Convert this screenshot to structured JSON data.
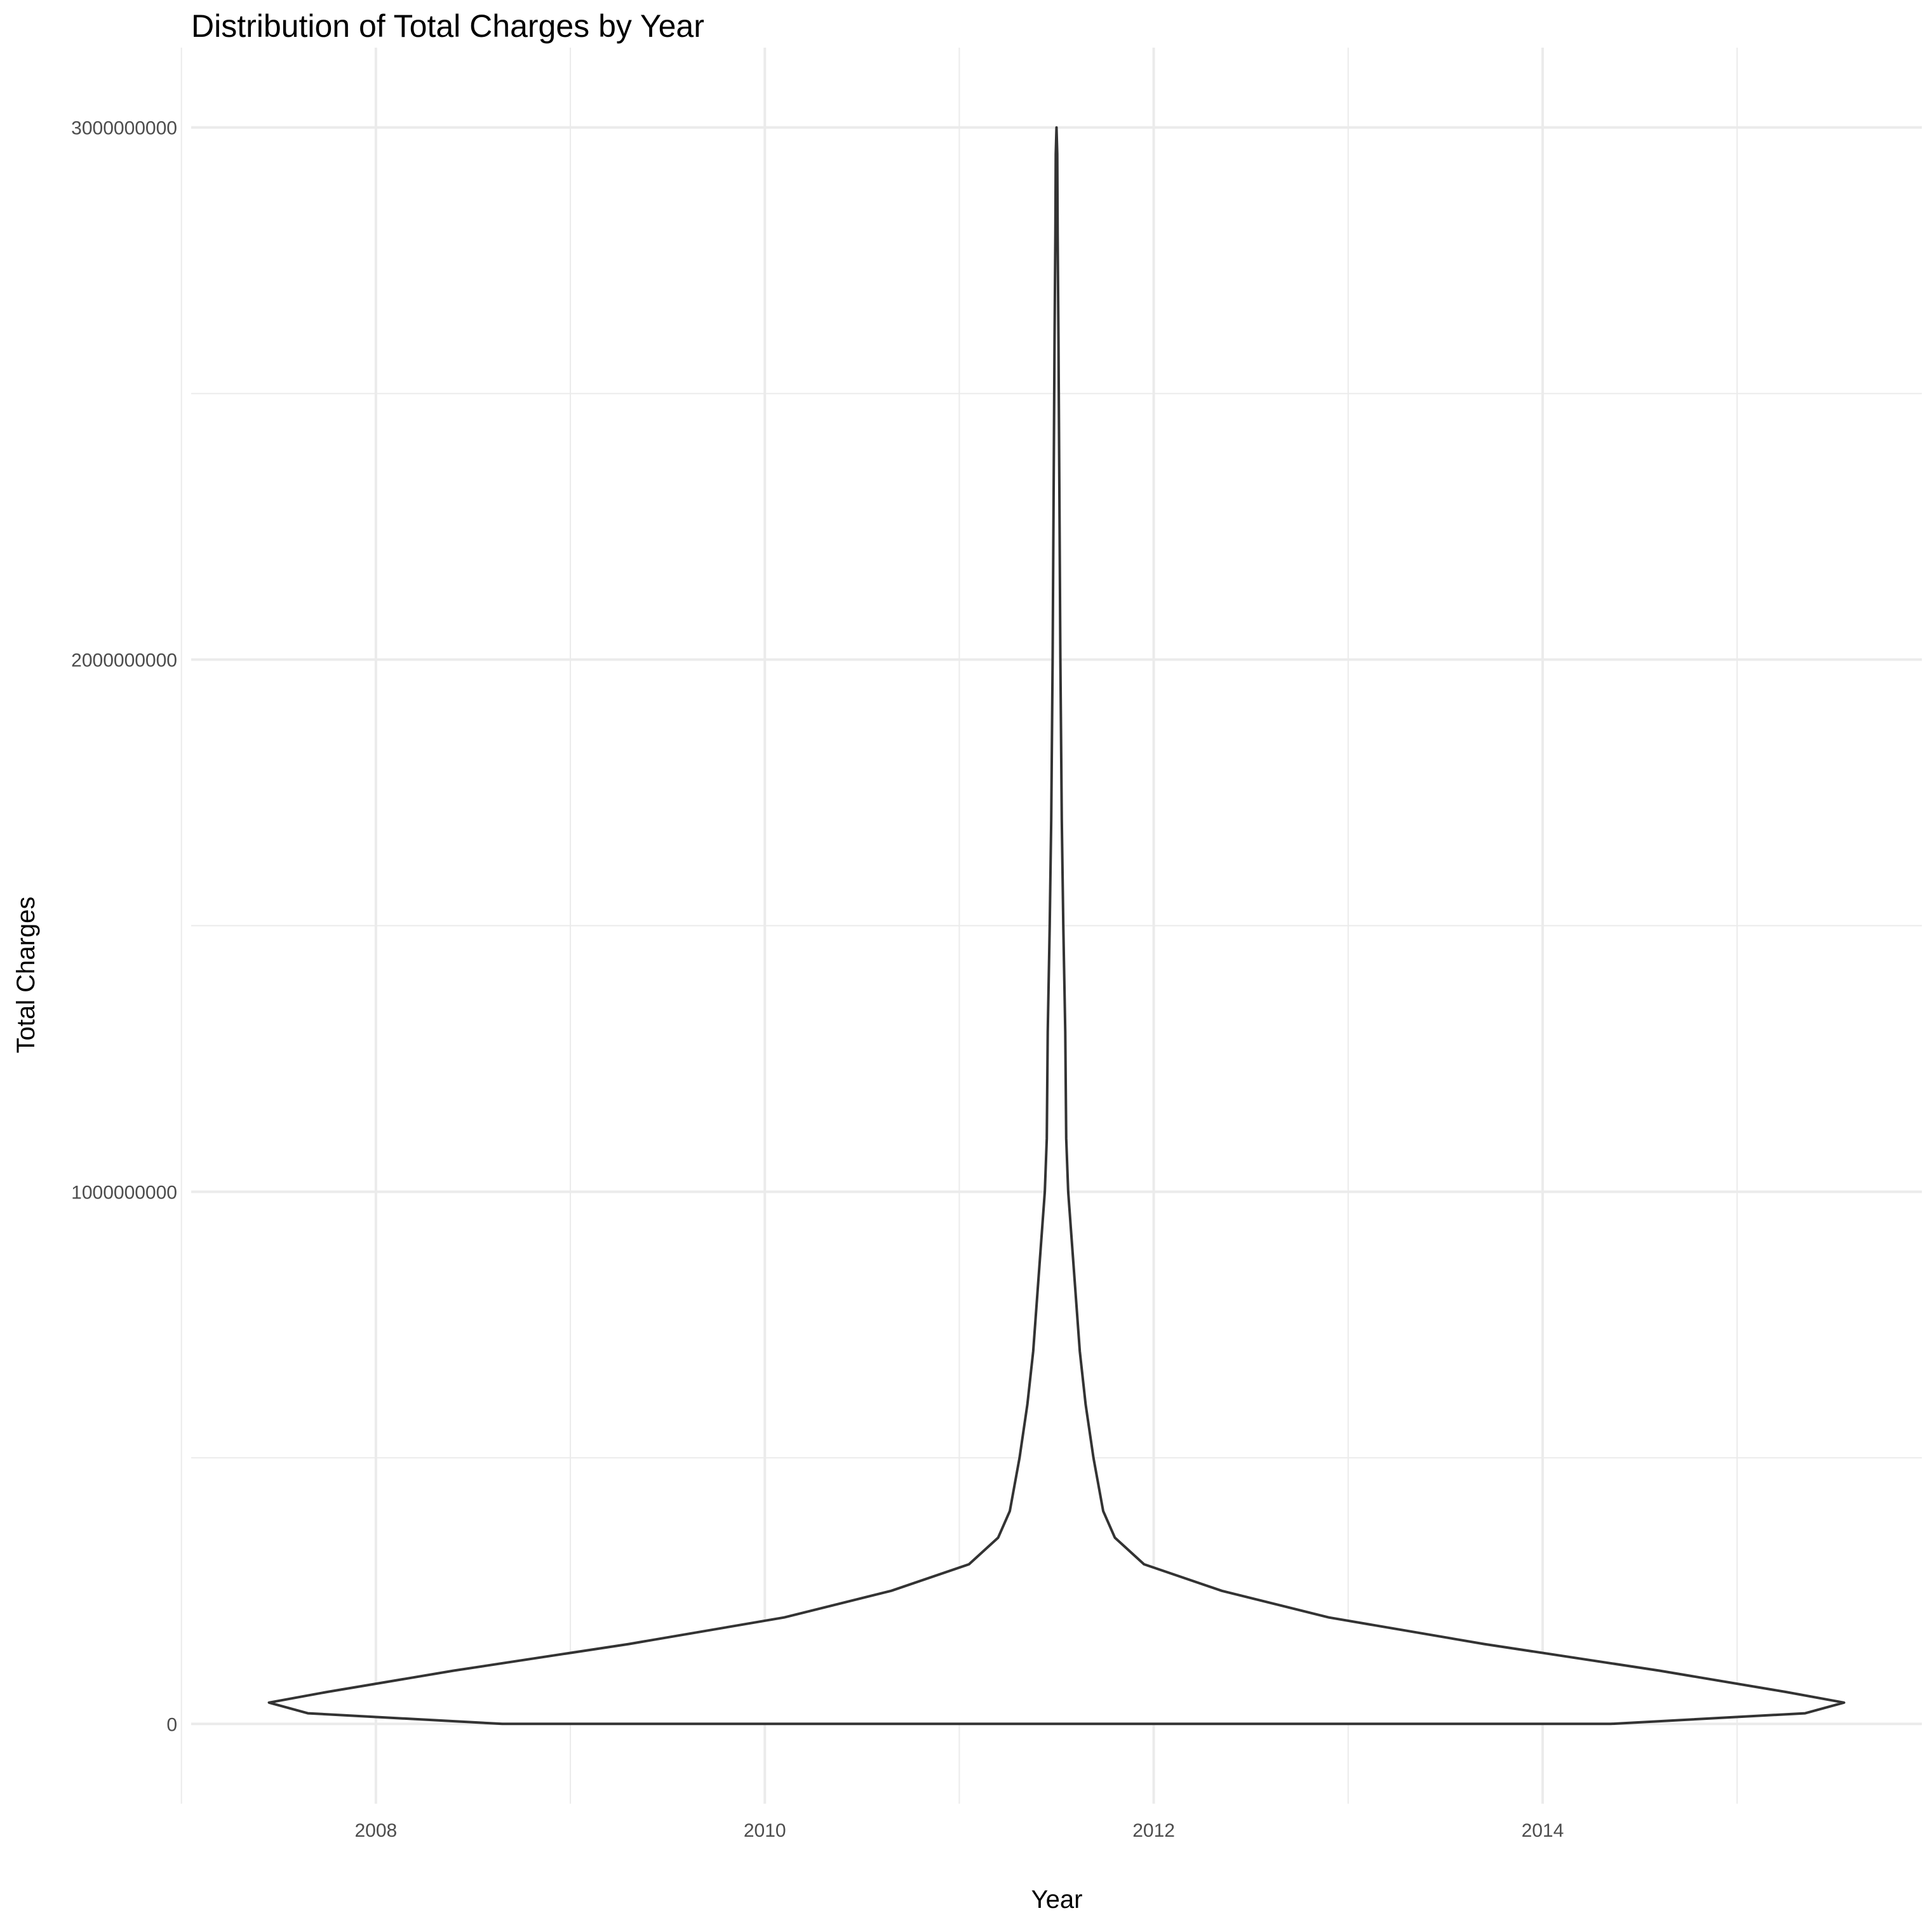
{
  "chart_data": {
    "type": "violin",
    "title": "Distribution of Total Charges by Year",
    "xlabel": "Year",
    "ylabel": "Total Charges",
    "xlim": [
      2007.05,
      2015.95
    ],
    "ylim": [
      -150000000,
      3150000000
    ],
    "x_ticks": [
      2008,
      2010,
      2012,
      2014
    ],
    "x_tick_labels": [
      "2008",
      "2010",
      "2012",
      "2014"
    ],
    "y_ticks": [
      0,
      1000000000,
      2000000000,
      3000000000
    ],
    "y_tick_labels": [
      "0",
      "1000000000",
      "2000000000",
      "3000000000"
    ],
    "grid": true,
    "violin": {
      "center": 2011.5,
      "profile": [
        {
          "y": 0,
          "half_width": 2.85
        },
        {
          "y": 20000000,
          "half_width": 3.85
        },
        {
          "y": 40000000,
          "half_width": 4.05
        },
        {
          "y": 60000000,
          "half_width": 3.75
        },
        {
          "y": 100000000,
          "half_width": 3.1
        },
        {
          "y": 150000000,
          "half_width": 2.2
        },
        {
          "y": 200000000,
          "half_width": 1.4
        },
        {
          "y": 250000000,
          "half_width": 0.85
        },
        {
          "y": 300000000,
          "half_width": 0.45
        },
        {
          "y": 350000000,
          "half_width": 0.3
        },
        {
          "y": 400000000,
          "half_width": 0.24
        },
        {
          "y": 500000000,
          "half_width": 0.19
        },
        {
          "y": 600000000,
          "half_width": 0.15
        },
        {
          "y": 700000000,
          "half_width": 0.12
        },
        {
          "y": 800000000,
          "half_width": 0.1
        },
        {
          "y": 900000000,
          "half_width": 0.08
        },
        {
          "y": 1000000000,
          "half_width": 0.06
        },
        {
          "y": 1100000000,
          "half_width": 0.05
        },
        {
          "y": 1300000000,
          "half_width": 0.045
        },
        {
          "y": 1500000000,
          "half_width": 0.035
        },
        {
          "y": 1700000000,
          "half_width": 0.027
        },
        {
          "y": 2000000000,
          "half_width": 0.02
        },
        {
          "y": 2300000000,
          "half_width": 0.015
        },
        {
          "y": 2600000000,
          "half_width": 0.01
        },
        {
          "y": 2800000000,
          "half_width": 0.006
        },
        {
          "y": 2950000000,
          "half_width": 0.004
        },
        {
          "y": 3000000000,
          "half_width": 0
        }
      ]
    }
  }
}
